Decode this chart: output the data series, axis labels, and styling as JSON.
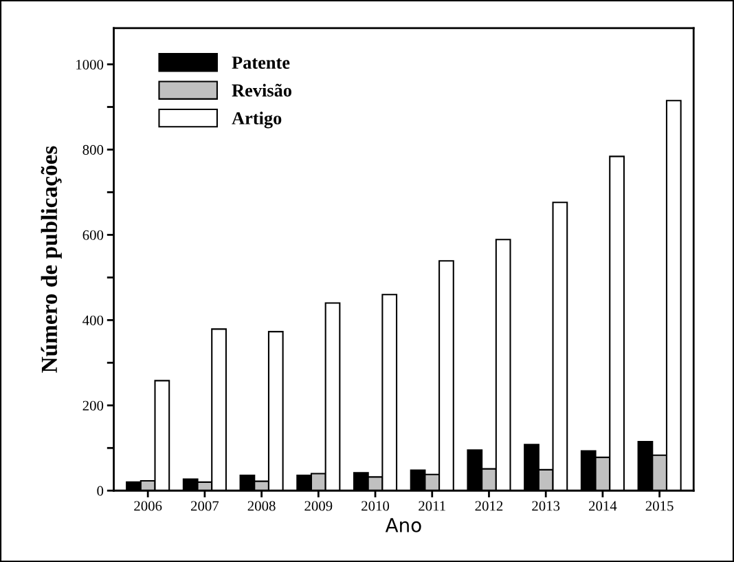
{
  "chart_data": {
    "type": "bar",
    "xlabel": "Ano",
    "ylabel": "Número de publicações",
    "categories": [
      "2006",
      "2007",
      "2008",
      "2009",
      "2010",
      "2011",
      "2012",
      "2013",
      "2014",
      "2015"
    ],
    "series": [
      {
        "name": "Patente",
        "color": "#000000",
        "values": [
          20,
          27,
          36,
          36,
          42,
          48,
          95,
          108,
          93,
          115
        ]
      },
      {
        "name": "Revisão",
        "color": "#c0c0c0",
        "values": [
          23,
          20,
          22,
          40,
          32,
          38,
          51,
          49,
          78,
          83
        ]
      },
      {
        "name": "Artigo",
        "color": "#ffffff",
        "values": [
          258,
          379,
          373,
          440,
          460,
          539,
          589,
          676,
          784,
          915
        ]
      }
    ],
    "ylim": [
      0,
      1085
    ],
    "yticks": [
      0,
      {
        "value": 100,
        "label": null
      },
      200,
      {
        "value": 300,
        "label": null
      },
      400,
      {
        "value": 500,
        "label": null
      },
      600,
      {
        "value": 700,
        "label": null
      },
      800,
      {
        "value": 900,
        "label": null
      },
      1000
    ],
    "grid": false,
    "legend": "top left"
  }
}
